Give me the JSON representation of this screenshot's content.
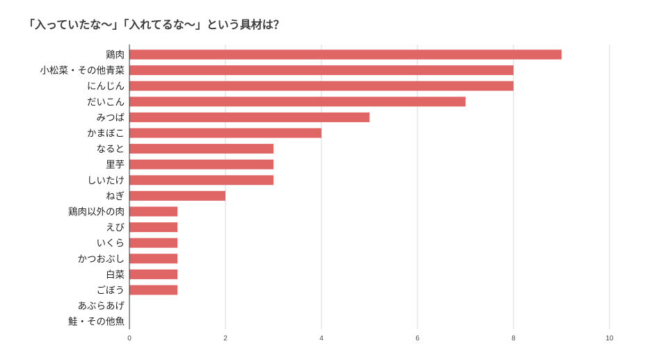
{
  "chart_data": {
    "type": "bar",
    "orientation": "horizontal",
    "title": "「入っていたな〜」「入れてるな〜」という具材は？",
    "categories": [
      "鶏肉",
      "小松菜・その他青菜",
      "にんじん",
      "だいこん",
      "みつば",
      "かまぼこ",
      "なると",
      "里芋",
      "しいたけ",
      "ねぎ",
      "鶏肉以外の肉",
      "えび",
      "いくら",
      "かつおぶし",
      "白菜",
      "ごぼう",
      "あぶらあげ",
      "鮭・その他魚"
    ],
    "values": [
      9,
      8,
      8,
      7,
      5,
      4,
      3,
      3,
      3,
      2,
      1,
      1,
      1,
      1,
      1,
      1,
      0,
      0
    ],
    "xlim": [
      0,
      10
    ],
    "xticks": [
      0,
      2,
      4,
      6,
      8,
      10
    ],
    "bar_color": "#e06666",
    "grid": true
  }
}
